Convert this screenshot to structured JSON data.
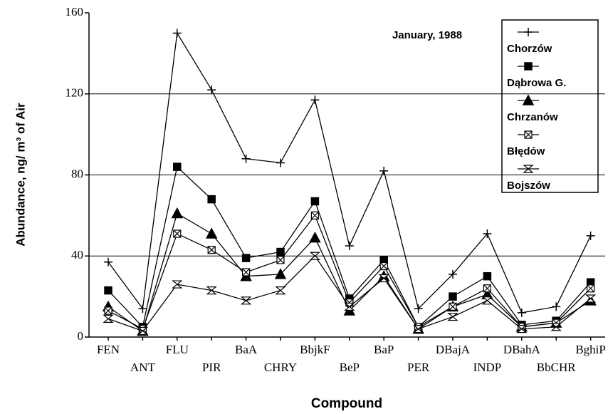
{
  "chart_data": {
    "type": "line",
    "annotation": "January, 1988",
    "x_label": "Compound",
    "y_label": "Abundance, ng/ m³ of Air",
    "categories": [
      "FEN",
      "ANT",
      "FLU",
      "PIR",
      "BaA",
      "CHRY",
      "BbjkF",
      "BeP",
      "BaP",
      "PER",
      "DBajA",
      "INDP",
      "DBahA",
      "BbCHR",
      "BghiP"
    ],
    "ylim": [
      0,
      160
    ],
    "yticks": [
      0,
      40,
      80,
      120,
      160
    ],
    "grid": true,
    "legend": "upper right",
    "series": [
      {
        "name": "Chorzów",
        "color": "#000000",
        "marker": "plus",
        "values": [
          37,
          14,
          150,
          122,
          88,
          86,
          117,
          45,
          82,
          14,
          31,
          51,
          12,
          15,
          50
        ]
      },
      {
        "name": "Dąbrowa G.",
        "color": "#000000",
        "marker": "square",
        "values": [
          23,
          5,
          84,
          68,
          39,
          42,
          67,
          19,
          38,
          5,
          20,
          30,
          6,
          8,
          27
        ]
      },
      {
        "name": "Chrzanów",
        "color": "#000000",
        "marker": "triangle",
        "values": [
          15,
          3,
          61,
          51,
          30,
          31,
          49,
          13,
          30,
          4,
          15,
          21,
          5,
          7,
          18
        ]
      },
      {
        "name": "Błędów",
        "color": "#000000",
        "marker": "boxx",
        "values": [
          13,
          4,
          51,
          43,
          32,
          38,
          60,
          17,
          35,
          5,
          15,
          24,
          5,
          7,
          24
        ]
      },
      {
        "name": "Bojszów",
        "color": "#000000",
        "marker": "bowtie",
        "values": [
          9,
          3,
          26,
          23,
          18,
          23,
          40,
          15,
          29,
          4,
          10,
          18,
          4,
          5,
          19
        ]
      }
    ]
  }
}
